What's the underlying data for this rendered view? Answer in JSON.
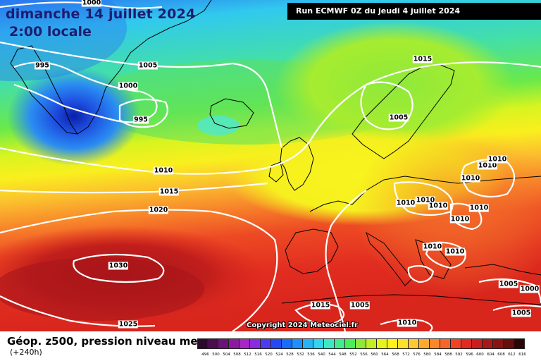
{
  "header": {
    "date_title": "dimanche 14 juillet 2024",
    "time_title": "2:00 locale",
    "run_info": "Run ECMWF 0Z du jeudi 4 juillet 2024"
  },
  "footer": {
    "field_title": "Géop. z500, pression niveau mer",
    "lead_time": "(+240h)",
    "copyright": "Copyright 2024 Meteociel.fr"
  },
  "isobar_labels": [
    "1000",
    "995",
    "1005",
    "1000",
    "995",
    "1015",
    "1005",
    "1010",
    "1015",
    "1020",
    "1030",
    "1025",
    "1015",
    "1005",
    "1010",
    "1010",
    "1010",
    "1010",
    "1010",
    "1010",
    "1010",
    "1010",
    "1010",
    "1010",
    "1005",
    "1000",
    "1005",
    "1010"
  ],
  "colorbar": {
    "labels": [
      "496",
      "500",
      "504",
      "508",
      "512",
      "516",
      "520",
      "524",
      "528",
      "532",
      "536",
      "540",
      "544",
      "548",
      "552",
      "556",
      "560",
      "564",
      "568",
      "572",
      "576",
      "580",
      "584",
      "588",
      "592",
      "596",
      "600",
      "604",
      "608",
      "612",
      "616"
    ],
    "colors": [
      "#2b0a2e",
      "#4a0e4e",
      "#6a1478",
      "#8c1aa0",
      "#a826c4",
      "#8b2be0",
      "#4e3bf0",
      "#2548f5",
      "#1a6cf8",
      "#1e90ff",
      "#25b4f5",
      "#35d2ec",
      "#3fe8c4",
      "#45eb8e",
      "#4ded5a",
      "#8ee93a",
      "#c2ee24",
      "#e7f41a",
      "#fdf21c",
      "#fde02a",
      "#fdc834",
      "#fdaa2e",
      "#fb8828",
      "#f6662a",
      "#ef4326",
      "#e12a22",
      "#c81e1e",
      "#a81818",
      "#861414",
      "#640e0e",
      "#2a0606"
    ]
  },
  "map_colors": {
    "deep_blue": "#1e4fe0",
    "cyan": "#31c9ee",
    "green": "#48e58c",
    "yellow": "#f8f41e",
    "orange": "#f89c30",
    "red": "#e5321f",
    "dark_red": "#b51c18",
    "isobar": "#ffffff",
    "coastline": "#000000"
  }
}
